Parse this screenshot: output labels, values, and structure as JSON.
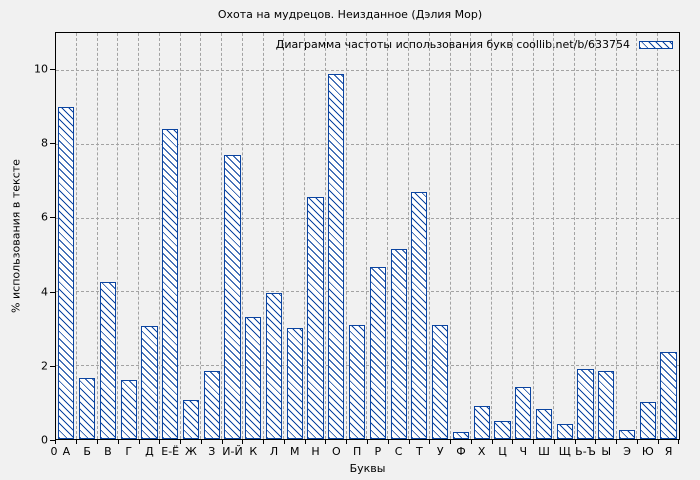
{
  "chart_data": {
    "type": "bar",
    "title": "Охота на мудрецов. Неизданное (Дэлия Мор)",
    "legend": "Диаграмма частоты использования букв coollib.net/b/633754",
    "legend_position": "top-right",
    "xlabel": "Буквы",
    "ylabel": "% использования в тексте",
    "origin_label": "0",
    "grid": true,
    "yticks": [
      0,
      2,
      4,
      6,
      8,
      10
    ],
    "ylim": [
      0,
      11
    ],
    "categories": [
      "А",
      "Б",
      "В",
      "Г",
      "Д",
      "Е-Ё",
      "Ж",
      "З",
      "И-Й",
      "К",
      "Л",
      "М",
      "Н",
      "О",
      "П",
      "Р",
      "С",
      "Т",
      "У",
      "Ф",
      "Х",
      "Ц",
      "Ч",
      "Ш",
      "Щ",
      "Ь-Ъ",
      "Ы",
      "Э",
      "Ю",
      "Я"
    ],
    "values": [
      9.0,
      1.65,
      4.25,
      1.6,
      3.05,
      8.4,
      1.05,
      1.85,
      7.7,
      3.3,
      3.95,
      3.0,
      6.55,
      9.9,
      3.1,
      4.65,
      5.15,
      6.7,
      3.1,
      0.2,
      0.9,
      0.5,
      1.4,
      0.8,
      0.4,
      1.9,
      1.85,
      0.25,
      1.0,
      2.35
    ],
    "colors": {
      "bar": "#0b44a0",
      "grid": "#a3a3a3",
      "background": "#f1f1f1",
      "axis": "#000000",
      "text": "#000000"
    }
  }
}
